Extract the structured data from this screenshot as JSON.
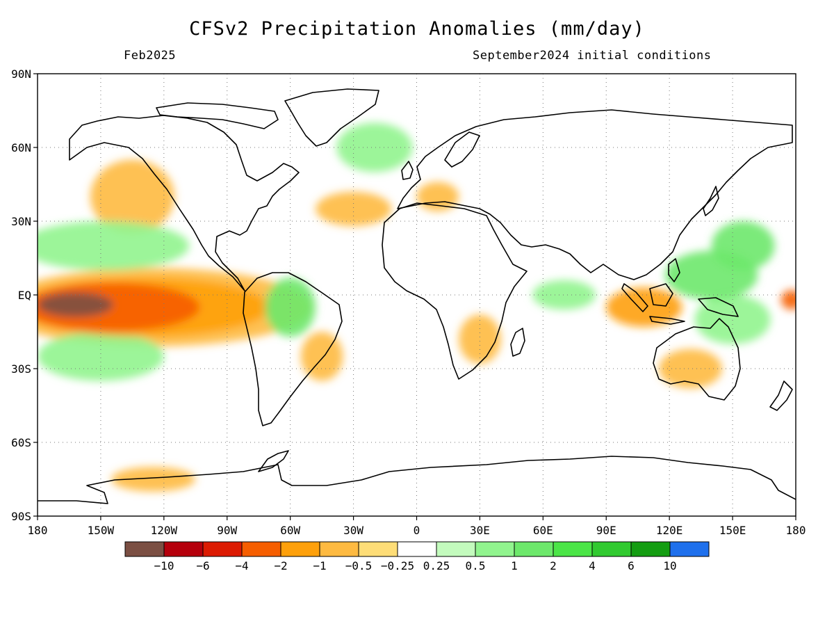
{
  "header": {
    "title": "CFSv2 Precipitation Anomalies (mm/day)",
    "valid_month": "Feb2025",
    "initial_conditions": "September2024 initial conditions"
  },
  "map": {
    "lat_ticks": [
      "90N",
      "60N",
      "30N",
      "EQ",
      "30S",
      "60S",
      "90S"
    ],
    "lon_ticks": [
      "180",
      "150W",
      "120W",
      "90W",
      "60W",
      "30W",
      "0",
      "30E",
      "60E",
      "90E",
      "120E",
      "150E",
      "180"
    ],
    "grid": "dotted",
    "coastline_color": "#000000",
    "anomaly_regions": [
      {
        "lon": -162,
        "lat": -4,
        "rlon": 18,
        "rlat": 5,
        "level": -10,
        "note": "central Pacific dry core"
      },
      {
        "lon": -145,
        "lat": -5,
        "rlon": 42,
        "rlat": 10,
        "level": -4
      },
      {
        "lon": -130,
        "lat": -5,
        "rlon": 60,
        "rlat": 12,
        "level": -2
      },
      {
        "lon": -125,
        "lat": -5,
        "rlon": 75,
        "rlat": 16,
        "level": -1
      },
      {
        "lon": -135,
        "lat": 40,
        "rlon": 20,
        "rlat": 15,
        "level": -1,
        "note": "NE Pacific / Alaska"
      },
      {
        "lon": -148,
        "lat": 20,
        "rlon": 40,
        "rlat": 10,
        "level": 1
      },
      {
        "lon": -150,
        "lat": -25,
        "rlon": 30,
        "rlat": 10,
        "level": 1
      },
      {
        "lon": -60,
        "lat": -5,
        "rlon": 12,
        "rlat": 12,
        "level": 2,
        "note": "Amazon wet"
      },
      {
        "lon": -45,
        "lat": -25,
        "rlon": 10,
        "rlat": 10,
        "level": -1
      },
      {
        "lon": -30,
        "lat": 35,
        "rlon": 18,
        "rlat": 7,
        "level": -1
      },
      {
        "lon": -20,
        "lat": 60,
        "rlon": 18,
        "rlat": 10,
        "level": 1
      },
      {
        "lon": 30,
        "lat": -18,
        "rlon": 10,
        "rlat": 10,
        "level": -1
      },
      {
        "lon": 108,
        "lat": -5,
        "rlon": 18,
        "rlat": 8,
        "level": -2,
        "note": "Maritime continent"
      },
      {
        "lon": 140,
        "lat": 8,
        "rlon": 22,
        "rlat": 10,
        "level": 2
      },
      {
        "lon": 155,
        "lat": 20,
        "rlon": 15,
        "rlat": 10,
        "level": 2
      },
      {
        "lon": 150,
        "lat": -10,
        "rlon": 18,
        "rlat": 10,
        "level": 1
      },
      {
        "lon": 130,
        "lat": -30,
        "rlon": 15,
        "rlat": 8,
        "level": -1
      },
      {
        "lon": 178,
        "lat": -2,
        "rlon": 5,
        "rlat": 4,
        "level": -4
      },
      {
        "lon": -125,
        "lat": -75,
        "rlon": 20,
        "rlat": 5,
        "level": -1
      },
      {
        "lon": 10,
        "lat": 40,
        "rlon": 10,
        "rlat": 6,
        "level": -1
      },
      {
        "lon": 70,
        "lat": 0,
        "rlon": 15,
        "rlat": 6,
        "level": 1
      }
    ]
  },
  "colorbar": {
    "bins": [
      {
        "color": "#7b4f43"
      },
      {
        "color": "#b5000c"
      },
      {
        "color": "#dc1b02"
      },
      {
        "color": "#f65e00"
      },
      {
        "color": "#fea00b"
      },
      {
        "color": "#feba41"
      },
      {
        "color": "#fedd77"
      },
      {
        "color": "#ffffff"
      },
      {
        "color": "#c3fbbd"
      },
      {
        "color": "#91f48e"
      },
      {
        "color": "#6de86b"
      },
      {
        "color": "#4be547"
      },
      {
        "color": "#31ca30"
      },
      {
        "color": "#149d12"
      },
      {
        "color": "#1f70ec"
      }
    ],
    "labels": [
      "−10",
      "−6",
      "−4",
      "−2",
      "−1",
      "−0.5",
      "−0.25",
      "0.25",
      "0.5",
      "1",
      "2",
      "4",
      "6",
      "10"
    ]
  }
}
